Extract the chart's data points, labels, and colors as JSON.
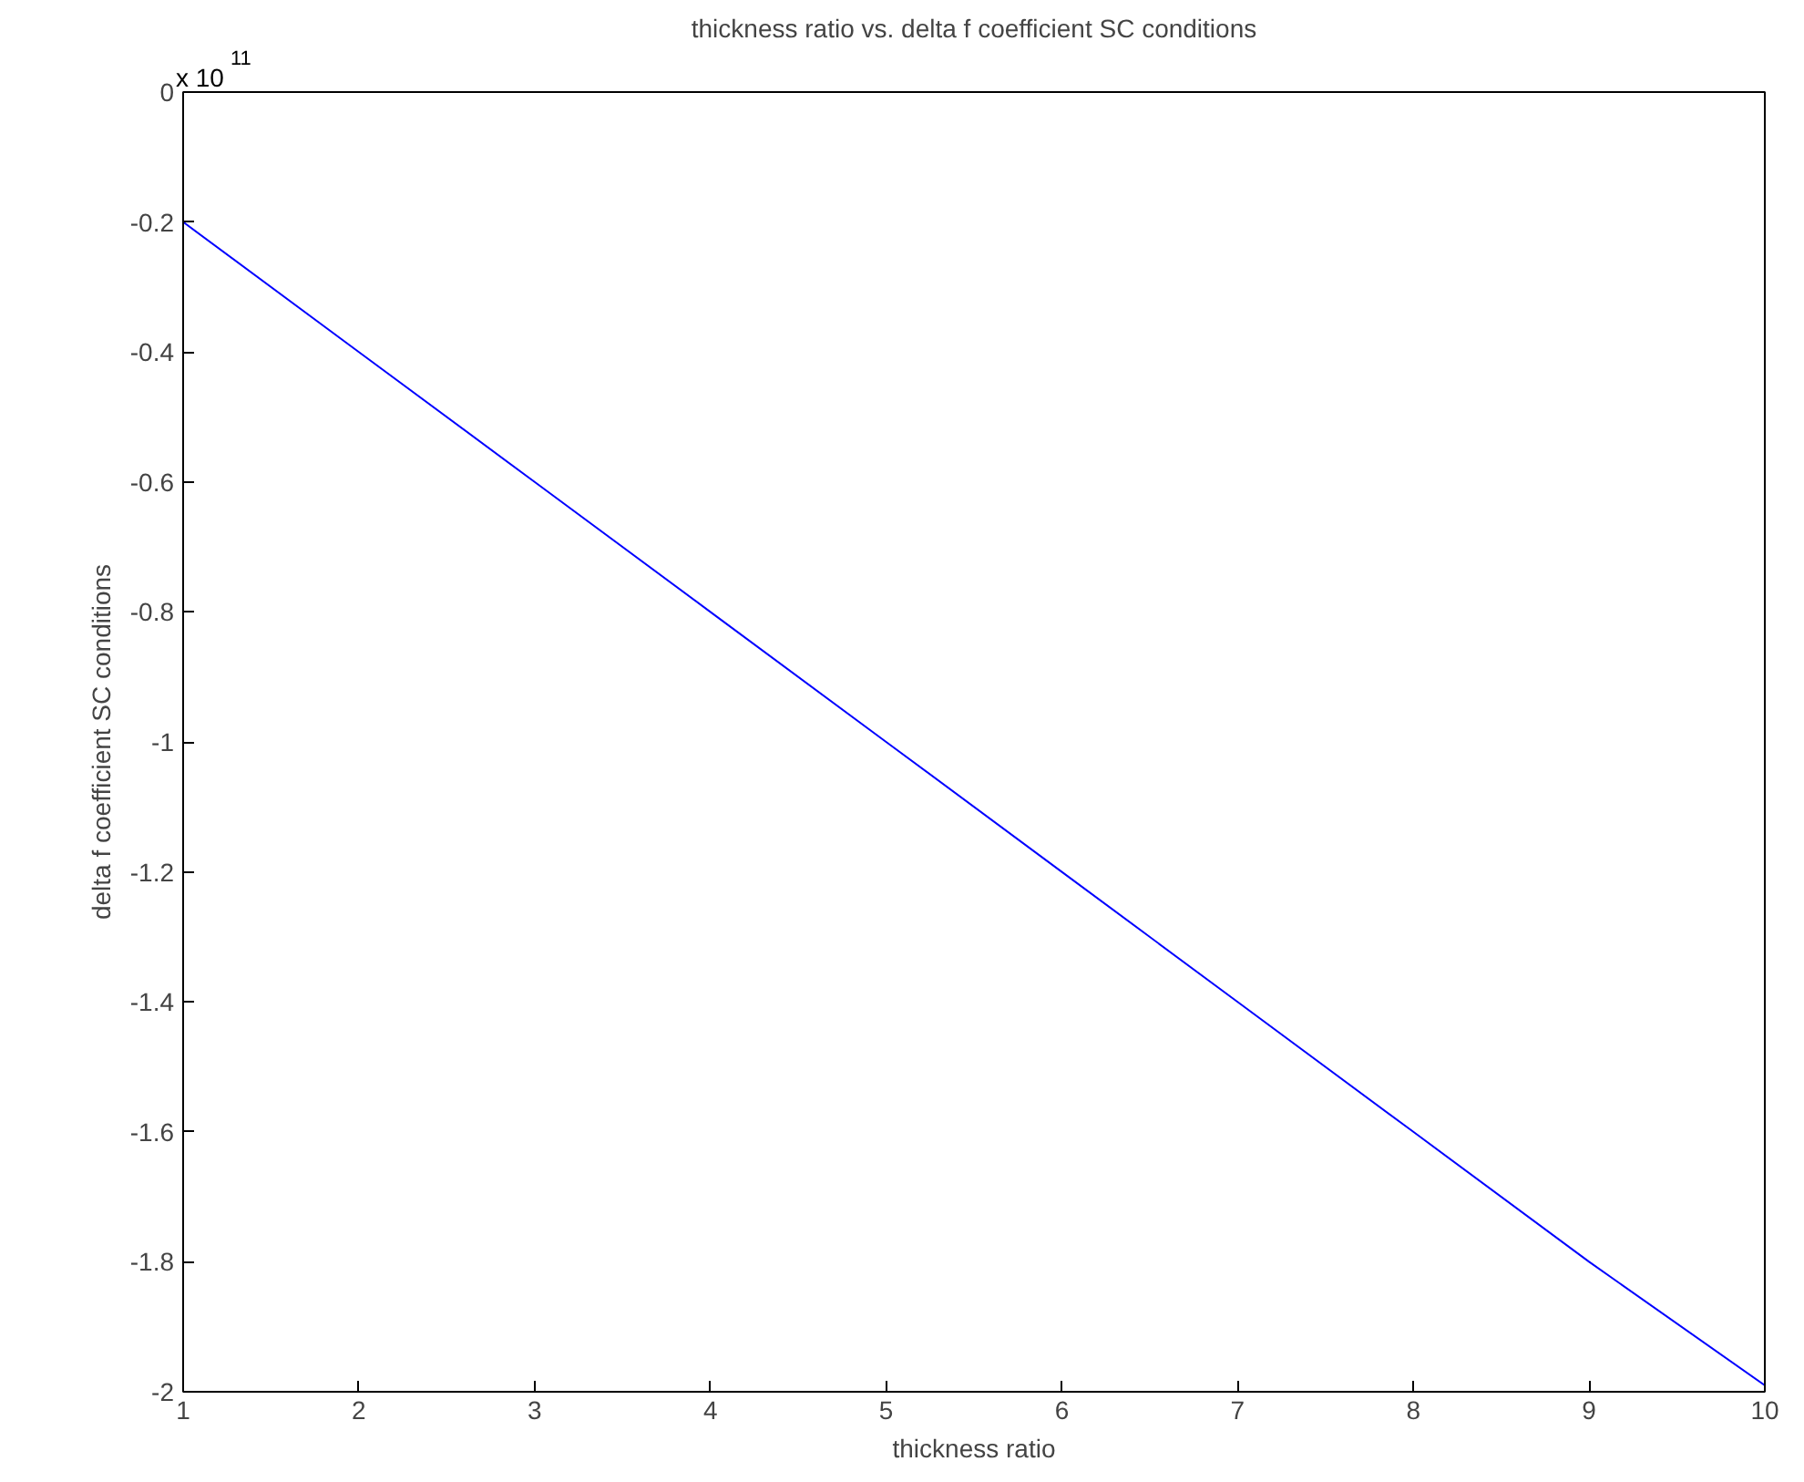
{
  "chart_data": {
    "type": "line",
    "title": "thickness ratio vs. delta f coefficient SC conditions",
    "xlabel": "thickness ratio",
    "ylabel": "delta f coefficient SC conditions",
    "annotations": [
      "x 10$^{11}$"
    ],
    "x": [
      1,
      2,
      3,
      4,
      5,
      6,
      7,
      8,
      9,
      10
    ],
    "series": [
      {
        "color": "#0000ff",
        "values": [
          -0.2,
          -0.4,
          -0.6,
          -0.8,
          -1.0,
          -1.2,
          -1.4,
          -1.6,
          -1.8,
          -1.99
        ]
      }
    ],
    "xlim": [
      1,
      10
    ],
    "xticks": [
      1,
      2,
      3,
      4,
      5,
      6,
      7,
      8,
      9,
      10
    ],
    "ylim": [
      -2,
      0
    ],
    "yticks": [
      -2,
      -1.8,
      -1.6,
      -1.4,
      -1.2,
      -1,
      -0.8,
      -0.6,
      -0.4,
      -0.2,
      0
    ],
    "grid": false,
    "marker": "none",
    "line_style": "solid"
  }
}
